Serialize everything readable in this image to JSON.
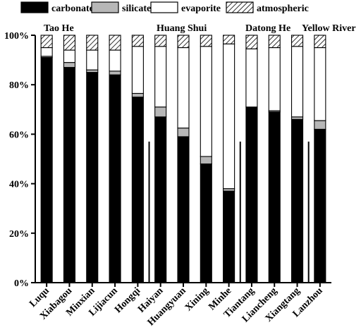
{
  "chart_data": {
    "type": "bar",
    "stacked": true,
    "percent": true,
    "categories": [
      "Luqu",
      "Xiabagou",
      "Minxian",
      "Lijiacun",
      "Hongqi",
      "Haiyan",
      "Huangyuan",
      "Xining",
      "Minhe",
      "Tiantang",
      "Liancheng",
      "Xiangtang",
      "Lanzhou"
    ],
    "series": [
      {
        "name": "carbonate",
        "key": "carbonate",
        "values": [
          91,
          87,
          85,
          84,
          75,
          67,
          59,
          48,
          37,
          71,
          69,
          66,
          62
        ]
      },
      {
        "name": "silicate",
        "key": "silicate",
        "values": [
          0.5,
          2,
          1,
          1.5,
          1.5,
          4,
          3.5,
          3,
          1,
          0,
          0.5,
          1,
          3.5
        ]
      },
      {
        "name": "evaporite",
        "key": "evaporite",
        "values": [
          3.5,
          5,
          8,
          8.5,
          19,
          24.5,
          32.5,
          44.5,
          58.5,
          23.5,
          25.5,
          28.5,
          29.5
        ]
      },
      {
        "name": "atmospheric",
        "key": "atmospheric",
        "values": [
          5,
          6,
          6,
          6,
          4.5,
          4.5,
          5,
          4.5,
          3.5,
          5.5,
          5,
          4.5,
          5
        ]
      }
    ],
    "legend_position": "top",
    "ylim": [
      0,
      100
    ],
    "yticks": [
      "0%",
      "20%",
      "40%",
      "60%",
      "80%",
      "100%"
    ],
    "ytick_values": [
      0,
      20,
      40,
      60,
      80,
      100
    ],
    "groups": [
      {
        "label": "Tao He",
        "from": 0,
        "to": 4
      },
      {
        "label": "Huang Shui",
        "from": 5,
        "to": 8
      },
      {
        "label": "Datong He",
        "from": 9,
        "to": 11
      },
      {
        "label": "Yellow River",
        "from": 12,
        "to": 12
      }
    ],
    "separators_after": [
      4,
      8,
      11
    ]
  }
}
